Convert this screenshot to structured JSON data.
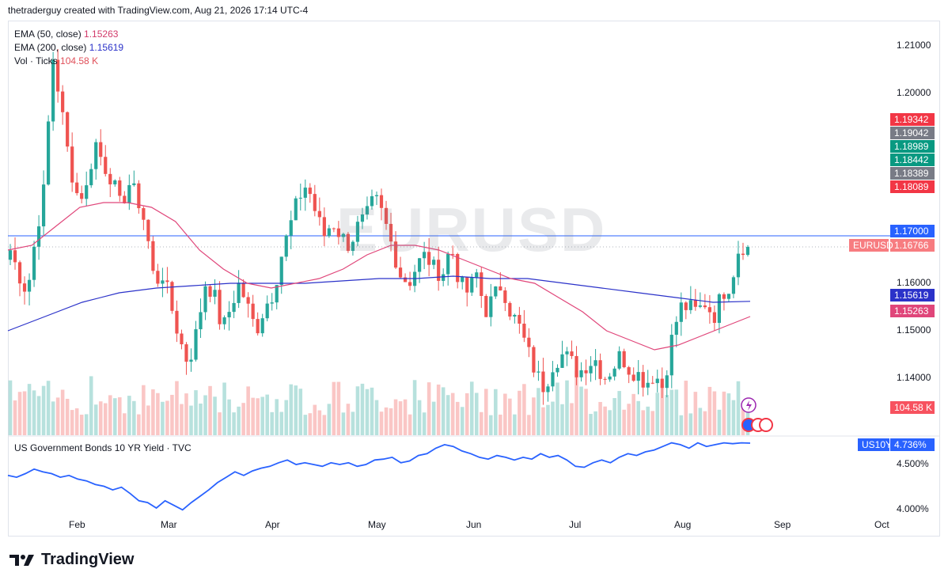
{
  "header": {
    "credit": "thetraderguy created with TradingView.com, Aug 21, 2026 17:14 UTC-4"
  },
  "legend": {
    "ema50": {
      "label": "EMA (50, close)",
      "value": "1.15263"
    },
    "ema200": {
      "label": "EMA (200, close)",
      "value": "1.15619"
    },
    "vol": {
      "label": "Vol · Ticks",
      "value": "104.58 K"
    }
  },
  "watermark": "EURUSD",
  "pane2": {
    "label": "US Government Bonds 10 YR Yield · TVC"
  },
  "footer": {
    "brand": "TradingView"
  },
  "colors": {
    "up": "#26a69a",
    "down": "#ef5350",
    "ema50": "#e0467a",
    "ema200": "#2b32c9",
    "bond": "#2962ff"
  },
  "price_labels": [
    {
      "text": "1.19342",
      "price": 1.19342,
      "color": "#f23645"
    },
    {
      "text": "1.19042",
      "price": 1.19042,
      "color": "#787b86"
    },
    {
      "text": "1.18989",
      "price": 1.18989,
      "color": "#089981"
    },
    {
      "text": "1.18442",
      "price": 1.18442,
      "color": "#089981"
    },
    {
      "text": "1.18389",
      "price": 1.18389,
      "color": "#787b86"
    },
    {
      "text": "1.18089",
      "price": 1.18089,
      "color": "#f23645"
    },
    {
      "text": "1.17000",
      "price": 1.17,
      "color": "#2962ff"
    },
    {
      "text": "1.16766",
      "price": 1.16766,
      "color": "#f77c80",
      "tag": "EURUSD"
    },
    {
      "text": "1.15619",
      "price": 1.15619,
      "color": "#2b32c9"
    },
    {
      "text": "1.15263",
      "price": 1.15263,
      "color": "#e0467a"
    }
  ],
  "vol_label": "104.58 K",
  "bond_label": {
    "tag": "US10Y",
    "text": "4.736%"
  },
  "chart_data": [
    {
      "type": "candlestick",
      "title": "EURUSD",
      "y_ticks": [
        "1.21000",
        "1.20000",
        "1.16000",
        "1.15000",
        "1.14000"
      ],
      "ylim": [
        1.128,
        1.213
      ],
      "x_ticks": [
        "Feb",
        "Mar",
        "Apr",
        "May",
        "Jun",
        "Jul",
        "Aug",
        "Sep",
        "Oct"
      ],
      "hline": 1.17,
      "close_path": [
        1.167,
        1.162,
        1.158,
        1.17,
        1.18,
        1.208,
        1.197,
        1.185,
        1.178,
        1.18,
        1.19,
        1.185,
        1.182,
        1.176,
        1.181,
        1.178,
        1.172,
        1.16,
        1.162,
        1.155,
        1.148,
        1.143,
        1.15,
        1.16,
        1.158,
        1.15,
        1.155,
        1.16,
        1.155,
        1.15,
        1.155,
        1.158,
        1.166,
        1.172,
        1.178,
        1.181,
        1.175,
        1.17,
        1.173,
        1.17,
        1.168,
        1.172,
        1.174,
        1.178,
        1.174,
        1.168,
        1.162,
        1.16,
        1.164,
        1.166,
        1.163,
        1.162,
        1.168,
        1.16,
        1.158,
        1.162,
        1.154,
        1.157,
        1.16,
        1.154,
        1.151,
        1.146,
        1.141,
        1.138,
        1.143,
        1.145,
        1.144,
        1.141,
        1.143,
        1.144,
        1.14,
        1.142,
        1.145,
        1.142,
        1.141,
        1.139,
        1.141,
        1.138,
        1.148,
        1.155,
        1.155,
        1.154,
        1.156,
        1.153,
        1.158,
        1.16,
        1.168,
        1.1677
      ],
      "ema50_path": [
        1.167,
        1.168,
        1.172,
        1.176,
        1.177,
        1.177,
        1.176,
        1.173,
        1.167,
        1.163,
        1.16,
        1.159,
        1.16,
        1.161,
        1.163,
        1.166,
        1.168,
        1.168,
        1.167,
        1.165,
        1.163,
        1.161,
        1.16,
        1.157,
        1.154,
        1.15,
        1.148,
        1.146,
        1.147,
        1.149,
        1.151,
        1.153
      ],
      "ema200_path": [
        1.15,
        1.153,
        1.156,
        1.158,
        1.159,
        1.1595,
        1.16,
        1.16,
        1.16,
        1.1605,
        1.161,
        1.161,
        1.1615,
        1.161,
        1.161,
        1.16,
        1.159,
        1.158,
        1.157,
        1.156,
        1.1562
      ]
    },
    {
      "type": "line",
      "title": "US Government Bonds 10 YR Yield · TVC",
      "y_ticks": [
        "4.500%",
        "4.000%"
      ],
      "ylim": [
        3.95,
        4.78
      ],
      "values": [
        4.38,
        4.36,
        4.4,
        4.45,
        4.42,
        4.4,
        4.36,
        4.38,
        4.34,
        4.32,
        4.28,
        4.26,
        4.22,
        4.25,
        4.18,
        4.1,
        4.08,
        4.02,
        4.1,
        4.05,
        4.0,
        4.08,
        4.15,
        4.22,
        4.3,
        4.36,
        4.42,
        4.38,
        4.43,
        4.46,
        4.48,
        4.52,
        4.55,
        4.5,
        4.52,
        4.5,
        4.48,
        4.52,
        4.5,
        4.52,
        4.48,
        4.5,
        4.55,
        4.56,
        4.58,
        4.52,
        4.54,
        4.6,
        4.62,
        4.68,
        4.72,
        4.7,
        4.65,
        4.62,
        4.58,
        4.56,
        4.6,
        4.58,
        4.55,
        4.58,
        4.56,
        4.62,
        4.58,
        4.6,
        4.55,
        4.48,
        4.47,
        4.52,
        4.55,
        4.52,
        4.58,
        4.62,
        4.6,
        4.64,
        4.66,
        4.7,
        4.74,
        4.72,
        4.68,
        4.74,
        4.7,
        4.72,
        4.74,
        4.73,
        4.74,
        4.736
      ]
    }
  ]
}
